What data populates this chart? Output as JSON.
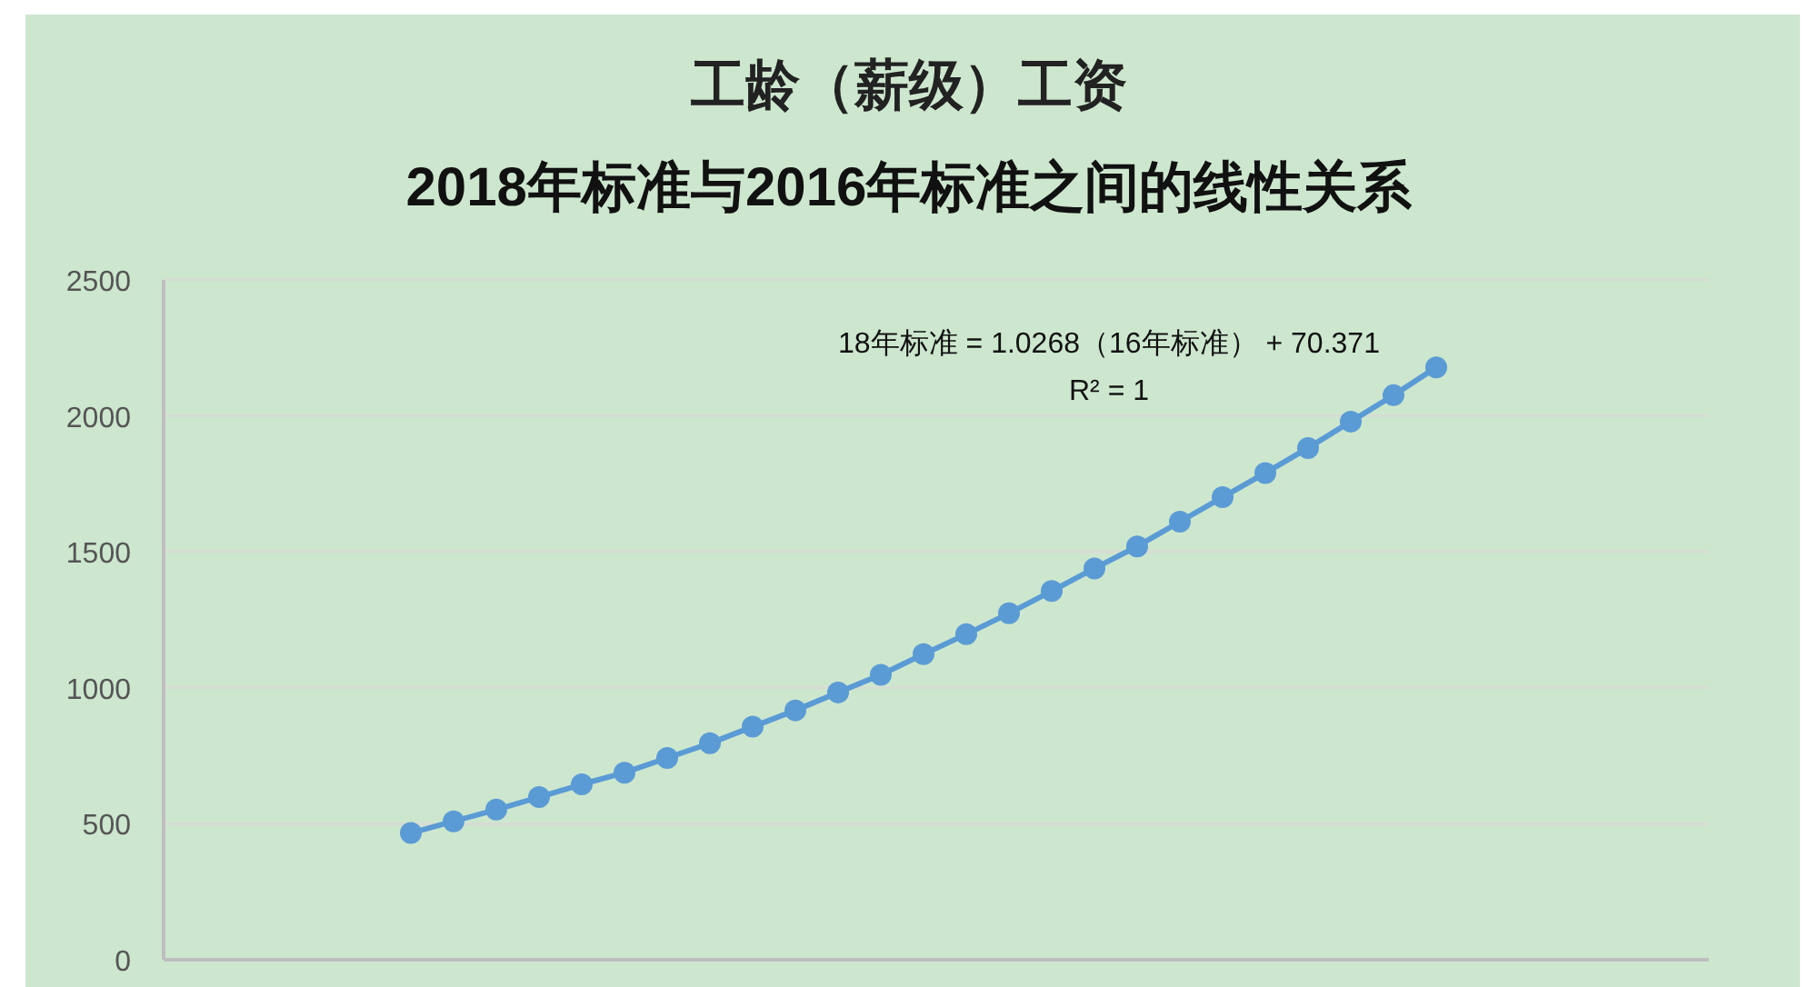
{
  "chart_data": {
    "type": "line",
    "title": "工龄（薪级）工资",
    "subtitle": "2018年标准与2016年标准之间的线性关系",
    "categories": [
      null,
      null,
      null,
      null,
      null,
      null,
      null,
      null,
      null,
      null,
      null,
      null,
      null,
      null,
      null,
      null,
      null,
      null,
      null,
      null,
      null,
      null,
      null,
      null,
      null
    ],
    "series": [
      {
        "color": "#5b9bd5",
        "values": [
          466,
          509,
          552,
          598,
          645,
          688,
          742,
          796,
          857,
          917,
          983,
          1048,
          1124,
          1197,
          1274,
          1356,
          1439,
          1520,
          1611,
          1701,
          1790,
          1882,
          1979,
          2076,
          2178
        ]
      }
    ],
    "ylim": [
      0,
      2500
    ],
    "yticks": [
      0,
      500,
      1000,
      1500,
      2000,
      2500
    ],
    "grid": "y",
    "marker": "circle",
    "line_style": "solid",
    "annotations": [
      "18年标准 = 1.0268（16年标准） + 70.371",
      "R² = 1"
    ]
  }
}
